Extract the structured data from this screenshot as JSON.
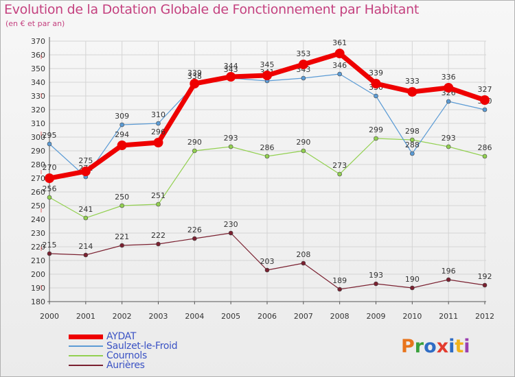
{
  "title": "Evolution de la Dotation Globale de Fonctionnement par Habitant",
  "subtitle": "(en € et par an)",
  "logo": {
    "text": "Proxiti",
    "colors": [
      "#e8741c",
      "#3aa03c",
      "#2f6cc4",
      "#e33b2e",
      "#2f6cc4",
      "#f2b21b",
      "#9a3fb0"
    ]
  },
  "chart_data": {
    "type": "line",
    "title": "Evolution de la Dotation Globale de Fonctionnement par Habitant",
    "subtitle": "(en € et par an)",
    "xlabel": "",
    "ylabel": "",
    "x": [
      "2000",
      "2001",
      "2002",
      "2003",
      "2004",
      "2005",
      "2006",
      "2007",
      "2008",
      "2009",
      "2010",
      "2011",
      "2012"
    ],
    "ylim": [
      180,
      370
    ],
    "yticks": [
      180,
      190,
      200,
      210,
      220,
      230,
      240,
      250,
      260,
      270,
      280,
      290,
      300,
      310,
      320,
      330,
      340,
      350,
      360,
      370
    ],
    "grid": true,
    "legend": "bottom-left",
    "series": [
      {
        "name": "Aurières",
        "color": "#7a2030",
        "values": [
          215,
          214,
          221,
          222,
          226,
          230,
          203,
          208,
          189,
          193,
          190,
          196,
          192
        ]
      },
      {
        "name": "Cournols",
        "color": "#92d050",
        "values": [
          256,
          241,
          250,
          251,
          290,
          293,
          286,
          290,
          273,
          299,
          298,
          293,
          286
        ]
      },
      {
        "name": "Saulzet-le-Froid",
        "color": "#5b9bd5",
        "values": [
          295,
          271,
          309,
          310,
          338,
          343,
          341,
          343,
          346,
          330,
          288,
          326,
          320
        ]
      },
      {
        "name": "AYDAT",
        "color": "#ee0000",
        "values": [
          270,
          275,
          294,
          296,
          339,
          344,
          345,
          353,
          361,
          339,
          333,
          336,
          327
        ]
      }
    ]
  }
}
